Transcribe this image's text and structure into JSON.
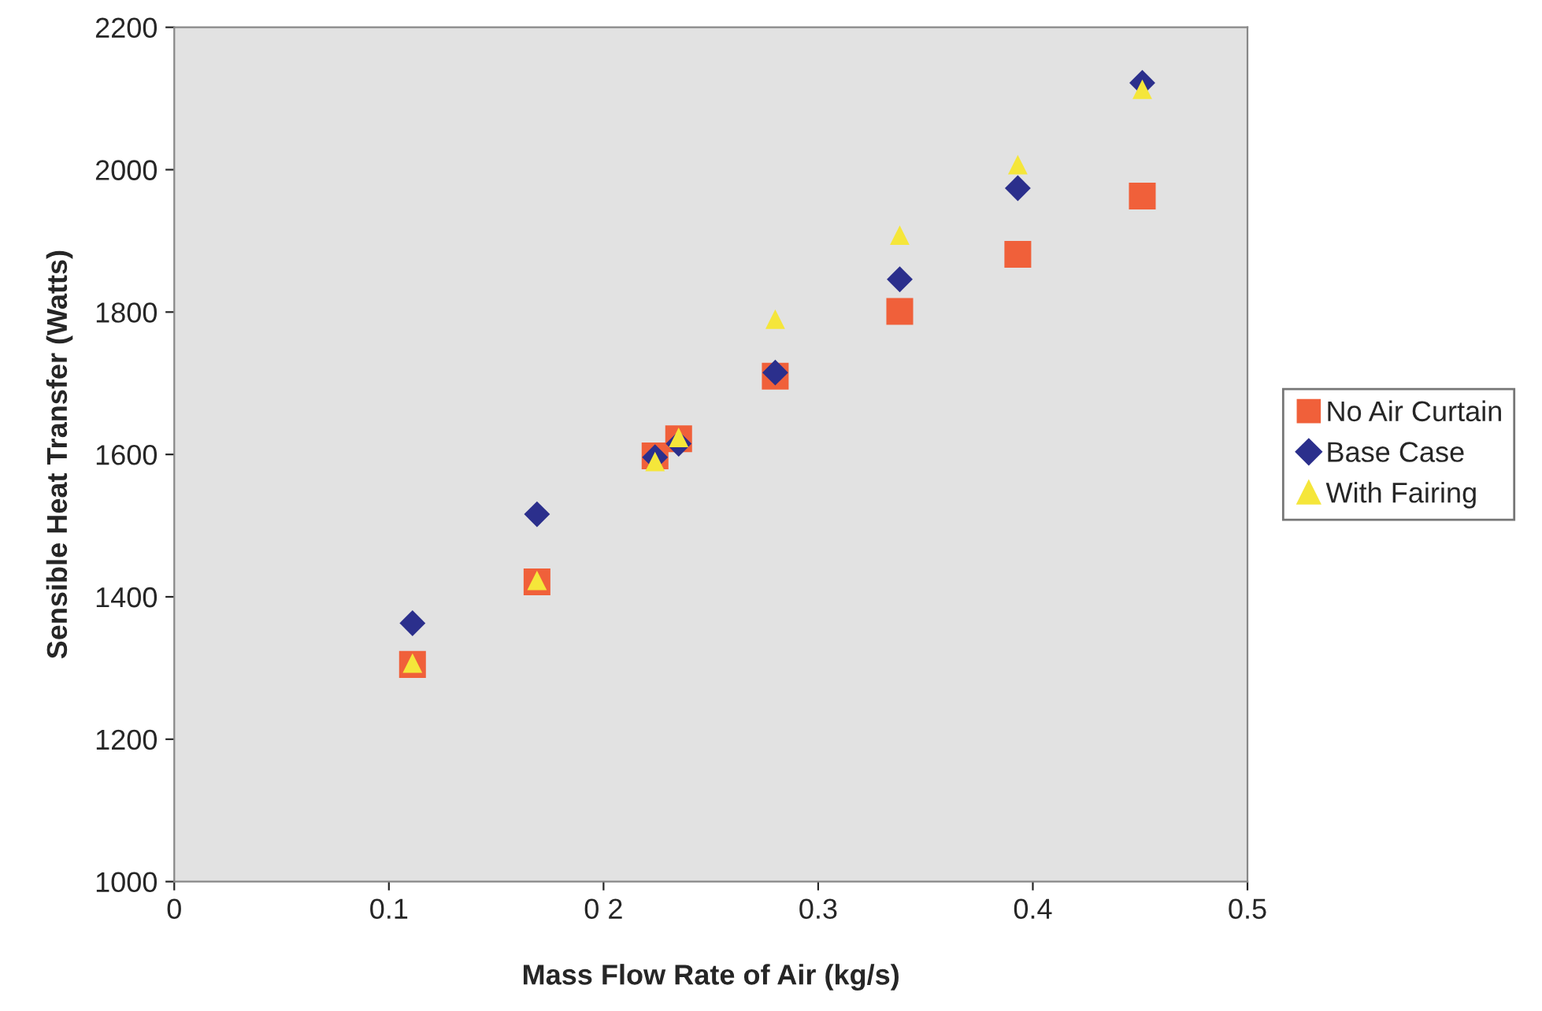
{
  "chart_data": {
    "type": "scatter",
    "xlabel": "Mass Flow Rate of Air (kg/s)",
    "ylabel": "Sensible Heat Transfer (Watts)",
    "xlim": [
      0,
      0.5
    ],
    "xticks": [
      0,
      0.1,
      {
        "value": 0.2,
        "label": "0 2"
      },
      0.3,
      0.4,
      0.5
    ],
    "ylim": [
      1000,
      2200
    ],
    "yticks": [
      1000,
      1200,
      1400,
      1600,
      1800,
      2000,
      2200
    ],
    "grid": false,
    "legend": "right",
    "series": [
      {
        "name": "No Air Curtain",
        "color": "#f0603a",
        "marker": "square",
        "x": [
          0.111,
          0.169,
          0.224,
          0.235,
          0.28,
          0.338,
          0.393,
          0.451
        ],
        "values": [
          1305,
          1421,
          1598,
          1622,
          1710,
          1801,
          1881,
          1963
        ]
      },
      {
        "name": "Base Case",
        "color": "#2b2f8c",
        "marker": "diamond",
        "x": [
          0.111,
          0.169,
          0.224,
          0.235,
          0.28,
          0.338,
          0.393,
          0.451
        ],
        "values": [
          1363,
          1516,
          1596,
          1615,
          1715,
          1846,
          1974,
          2122
        ]
      },
      {
        "name": "With Fairing",
        "color": "#f5e63a",
        "marker": "triangle",
        "x": [
          0.111,
          0.169,
          0.224,
          0.235,
          0.28,
          0.338,
          0.393,
          0.451
        ],
        "values": [
          1307,
          1423,
          1590,
          1624,
          1790,
          1908,
          2007,
          2113
        ]
      }
    ]
  }
}
